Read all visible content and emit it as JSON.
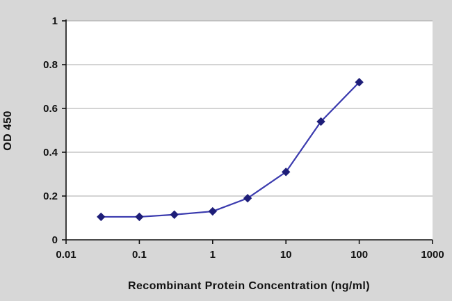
{
  "figure": {
    "outer_background": "#d7d7d7",
    "plot_background": "#ffffff",
    "axis_color": "#111111",
    "grid_color": "#aaaaaa",
    "tick_label_color": "#111111"
  },
  "chart_data": {
    "type": "line",
    "title": "",
    "xlabel": "Recombinant Protein Concentration (ng/ml)",
    "ylabel": "OD 450",
    "x_scale": "log",
    "xlim": [
      0.01,
      1000
    ],
    "ylim": [
      0,
      1
    ],
    "x": [
      0.03,
      0.1,
      0.3,
      1,
      3,
      10,
      30,
      100
    ],
    "values": [
      0.105,
      0.105,
      0.115,
      0.13,
      0.19,
      0.31,
      0.54,
      0.72
    ],
    "x_ticks": [
      0.01,
      0.1,
      1,
      10,
      100,
      1000
    ],
    "x_tick_labels": [
      "0.01",
      "0.1",
      "1",
      "10",
      "100",
      "1000"
    ],
    "y_ticks": [
      0,
      0.2,
      0.4,
      0.6,
      0.8,
      1
    ],
    "y_tick_labels": [
      "0",
      "0.2",
      "0.4",
      "0.6",
      "0.8",
      "1"
    ],
    "grid": "horizontal",
    "legend": "none",
    "line_color": "#3a3aae",
    "marker_color": "#1e1e78",
    "marker": "diamond"
  }
}
